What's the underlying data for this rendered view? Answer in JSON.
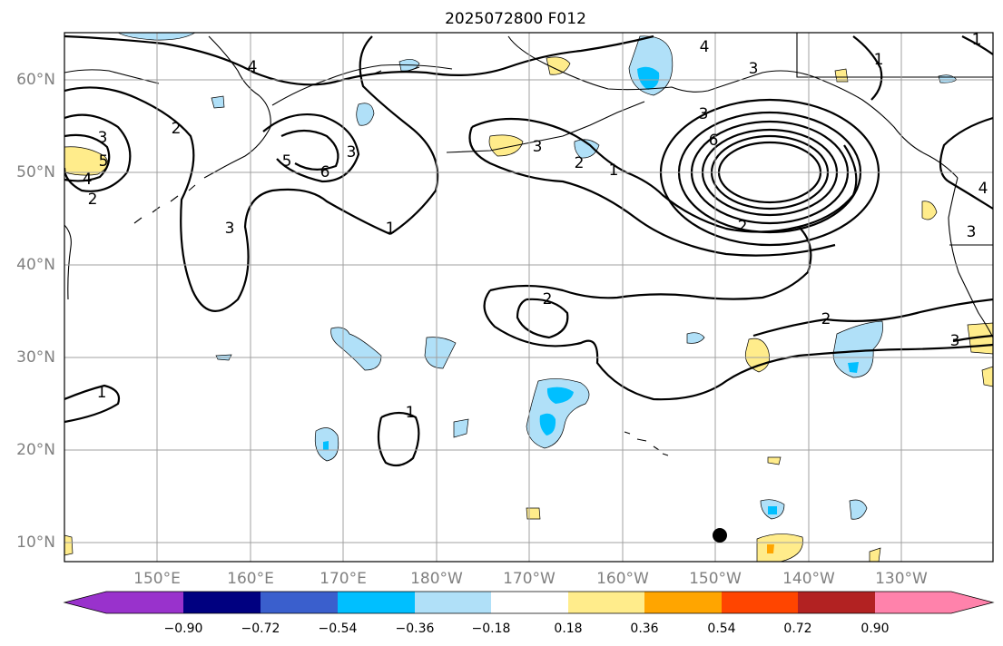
{
  "title": "2025072800 F012",
  "map": {
    "lon_labels": [
      "150°E",
      "160°E",
      "170°E",
      "180°W",
      "170°W",
      "160°W",
      "150°W",
      "140°W",
      "130°W"
    ],
    "lat_labels": [
      "60°N",
      "50°N",
      "40°N",
      "30°N",
      "20°N",
      "10°N"
    ],
    "contour_labels": [
      "4",
      "3",
      "1",
      "4",
      "3",
      "3",
      "6",
      "5",
      "2",
      "2",
      "1",
      "3",
      "4",
      "2",
      "3",
      "5",
      "6",
      "3",
      "2",
      "1",
      "1",
      "2",
      "2",
      "3",
      "1",
      "1",
      "3",
      "4"
    ]
  },
  "colorbar": {
    "colors": [
      "#9932cc",
      "#000080",
      "#3a5fcd",
      "#00bfff",
      "#b0e0f8",
      "#ffffff",
      "#ffec8b",
      "#ffa500",
      "#ff4500",
      "#b22222",
      "#ff82ab"
    ],
    "ticks": [
      "−0.90",
      "−0.72",
      "−0.54",
      "−0.36",
      "−0.18",
      "0.18",
      "0.36",
      "0.54",
      "0.72",
      "0.90"
    ]
  }
}
